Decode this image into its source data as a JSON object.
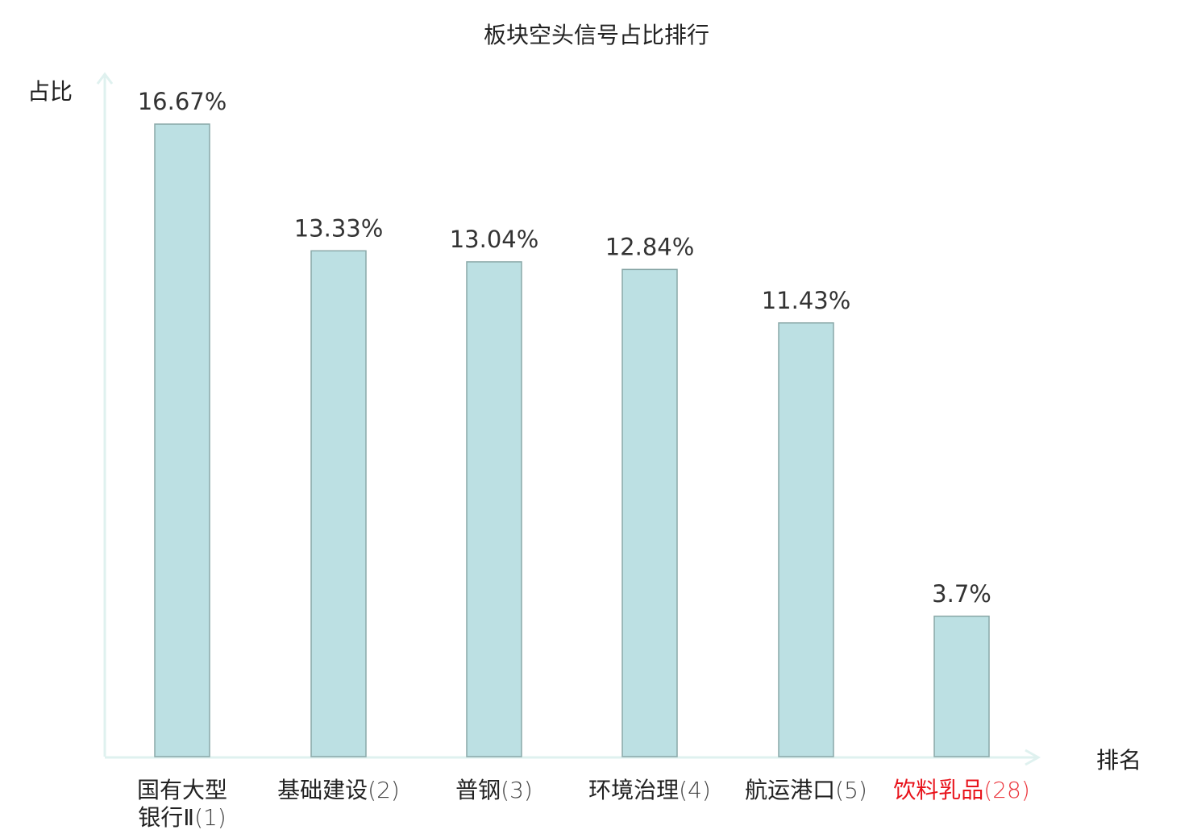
{
  "chart_data": {
    "type": "bar",
    "title": "板块空头信号占比排行",
    "xlabel": "排名",
    "ylabel": "占比",
    "categories": [
      {
        "name": "国有大型银行Ⅱ",
        "rank": "(1)",
        "highlight": false
      },
      {
        "name": "基础建设",
        "rank": "(2)",
        "highlight": false
      },
      {
        "name": "普钢",
        "rank": "(3)",
        "highlight": false
      },
      {
        "name": "环境治理",
        "rank": "(4)",
        "highlight": false
      },
      {
        "name": "航运港口",
        "rank": "(5)",
        "highlight": false
      },
      {
        "name": "饮料乳品",
        "rank": "(28)",
        "highlight": true
      }
    ],
    "values": [
      16.67,
      13.33,
      13.04,
      12.84,
      11.43,
      3.7
    ],
    "data_labels": [
      "16.67%",
      "13.33%",
      "13.04%",
      "12.84%",
      "11.43%",
      "3.7%"
    ],
    "ylim": [
      0,
      16.67
    ],
    "grid": false,
    "colors": {
      "bar_fill": "#bce0e3",
      "bar_stroke": "#8aa8a8",
      "axis": "#dff1ef",
      "label": "#333333",
      "highlight": "#e8141c"
    }
  }
}
